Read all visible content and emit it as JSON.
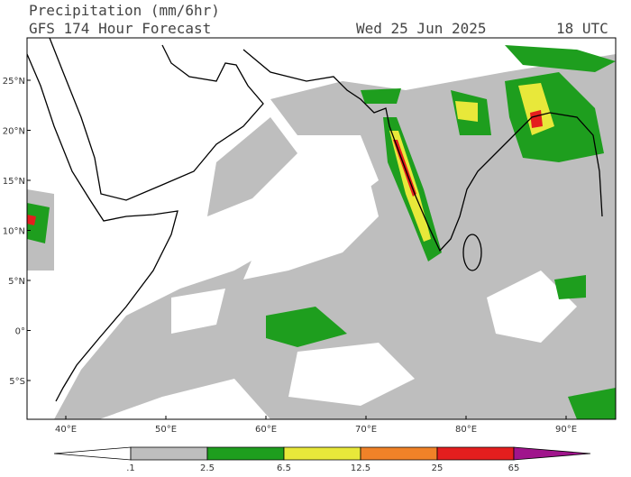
{
  "header": {
    "title": "Precipitation (mm/6hr)",
    "subtitle": "GFS 174 Hour Forecast",
    "date": "Wed 25 Jun 2025",
    "time": "18 UTC"
  },
  "map": {
    "lat_labels": [
      "25°N",
      "20°N",
      "15°N",
      "10°N",
      "5°N",
      "0°",
      "5°S"
    ],
    "lon_labels": [
      "40°E",
      "50°E",
      "60°E",
      "70°E",
      "80°E",
      "90°E"
    ]
  },
  "colorbar": {
    "labels": [
      ".1",
      "2.5",
      "6.5",
      "12.5",
      "25",
      "65"
    ],
    "colors": [
      "#ffffff",
      "#bebebe",
      "#1e9e1e",
      "#e8e83a",
      "#f08228",
      "#e41e1e",
      "#a0148c"
    ]
  }
}
